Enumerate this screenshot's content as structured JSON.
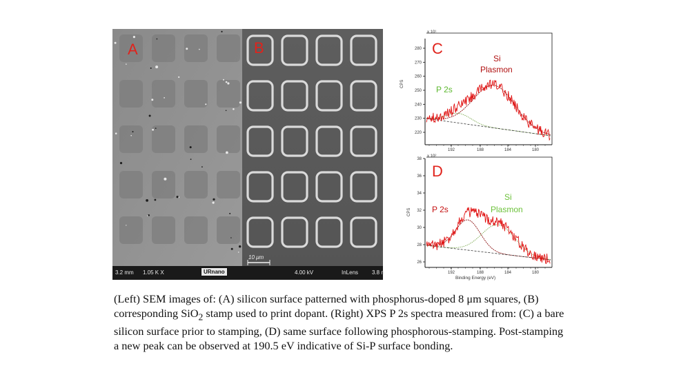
{
  "sem": {
    "panel_a_label": "A",
    "panel_b_label": "B",
    "footer": {
      "working_distance": "3.2 mm",
      "magnification": "1.05 K X",
      "logo": "URnano",
      "voltage": "4.00 kV",
      "detector": "InLens",
      "trailing": "3.8 n"
    },
    "scalebar_label": "10 μm"
  },
  "xps_c": {
    "panel_label": "C",
    "exponent_label": "x 10¹",
    "y_axis_label": "CPS",
    "y_ticks": [
      "280",
      "270",
      "260",
      "250",
      "240",
      "230",
      "220"
    ],
    "x_ticks": [
      "192",
      "188",
      "184",
      "180"
    ],
    "annotation_p2s": "P 2s",
    "annotation_si": "Si",
    "annotation_plasmon": "Plasmon",
    "colors": {
      "p2s": "#5cb82e",
      "plasmon": "#b01010",
      "spectrum": "#e01010"
    }
  },
  "xps_d": {
    "panel_label": "D",
    "exponent_label": "x 10²",
    "y_axis_label": "CPS",
    "y_ticks": [
      "38",
      "36",
      "34",
      "32",
      "30",
      "28",
      "26"
    ],
    "x_ticks": [
      "192",
      "188",
      "184",
      "180"
    ],
    "x_axis_label": "Binding Energy (eV)",
    "annotation_p2s": "P 2s",
    "annotation_si": "Si",
    "annotation_plasmon": "Plasmon",
    "colors": {
      "p2s": "#c41010",
      "plasmon": "#6cc13a",
      "spectrum": "#e01010"
    }
  },
  "caption": {
    "part1": "(Left) SEM images of: (A) silicon surface patterned with phosphorus-doped 8 μm squares, (B) corresponding SiO",
    "subscript": "2",
    "part2": " stamp used to print dopant. (Right) XPS P 2s spectra measured from: (C) a bare silicon surface prior to stamping, (D) same surface following phosphorous-stamping. Post-stamping a new peak can be observed at 190.5 eV indicative of Si-P surface bonding."
  }
}
